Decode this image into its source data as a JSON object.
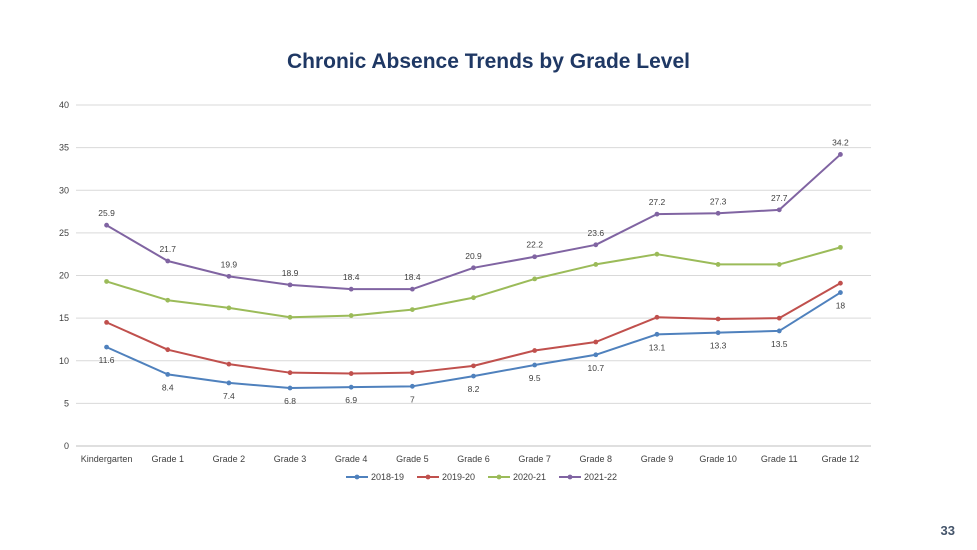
{
  "page_number": "33",
  "chart_data": {
    "type": "line",
    "title": "Chronic Absence Trends by Grade Level",
    "xlabel": "",
    "ylabel": "",
    "ylim": [
      0,
      40
    ],
    "yticks": [
      0,
      5,
      10,
      15,
      20,
      25,
      30,
      35,
      40
    ],
    "grid": true,
    "legend_position": "bottom",
    "categories": [
      "Kindergarten",
      "Grade  1",
      "Grade  2",
      "Grade  3",
      "Grade  4",
      "Grade  5",
      "Grade  6",
      "Grade  7",
      "Grade  8",
      "Grade  9",
      "Grade 10",
      "Grade 11",
      "Grade 12"
    ],
    "series": [
      {
        "name": "2018-19",
        "color": "#4f81bd",
        "labels_shown": true,
        "label_position": "below",
        "values": [
          11.6,
          8.4,
          7.4,
          6.8,
          6.9,
          7,
          8.2,
          9.5,
          10.7,
          13.1,
          13.3,
          13.5,
          18
        ]
      },
      {
        "name": "2019-20",
        "color": "#c0504d",
        "labels_shown": false,
        "values": [
          14.5,
          11.3,
          9.6,
          8.6,
          8.5,
          8.6,
          9.4,
          11.2,
          12.2,
          15.1,
          14.9,
          15,
          19.1
        ]
      },
      {
        "name": "2020-21",
        "color": "#9bbb59",
        "labels_shown": false,
        "values": [
          19.3,
          17.1,
          16.2,
          15.1,
          15.3,
          16,
          17.4,
          19.6,
          21.3,
          22.5,
          21.3,
          21.3,
          23.3
        ]
      },
      {
        "name": "2021-22",
        "color": "#8064a2",
        "labels_shown": true,
        "label_position": "above",
        "values": [
          25.9,
          21.7,
          19.9,
          18.9,
          18.4,
          18.4,
          20.9,
          22.2,
          23.6,
          27.2,
          27.3,
          27.7,
          34.2
        ]
      }
    ]
  }
}
